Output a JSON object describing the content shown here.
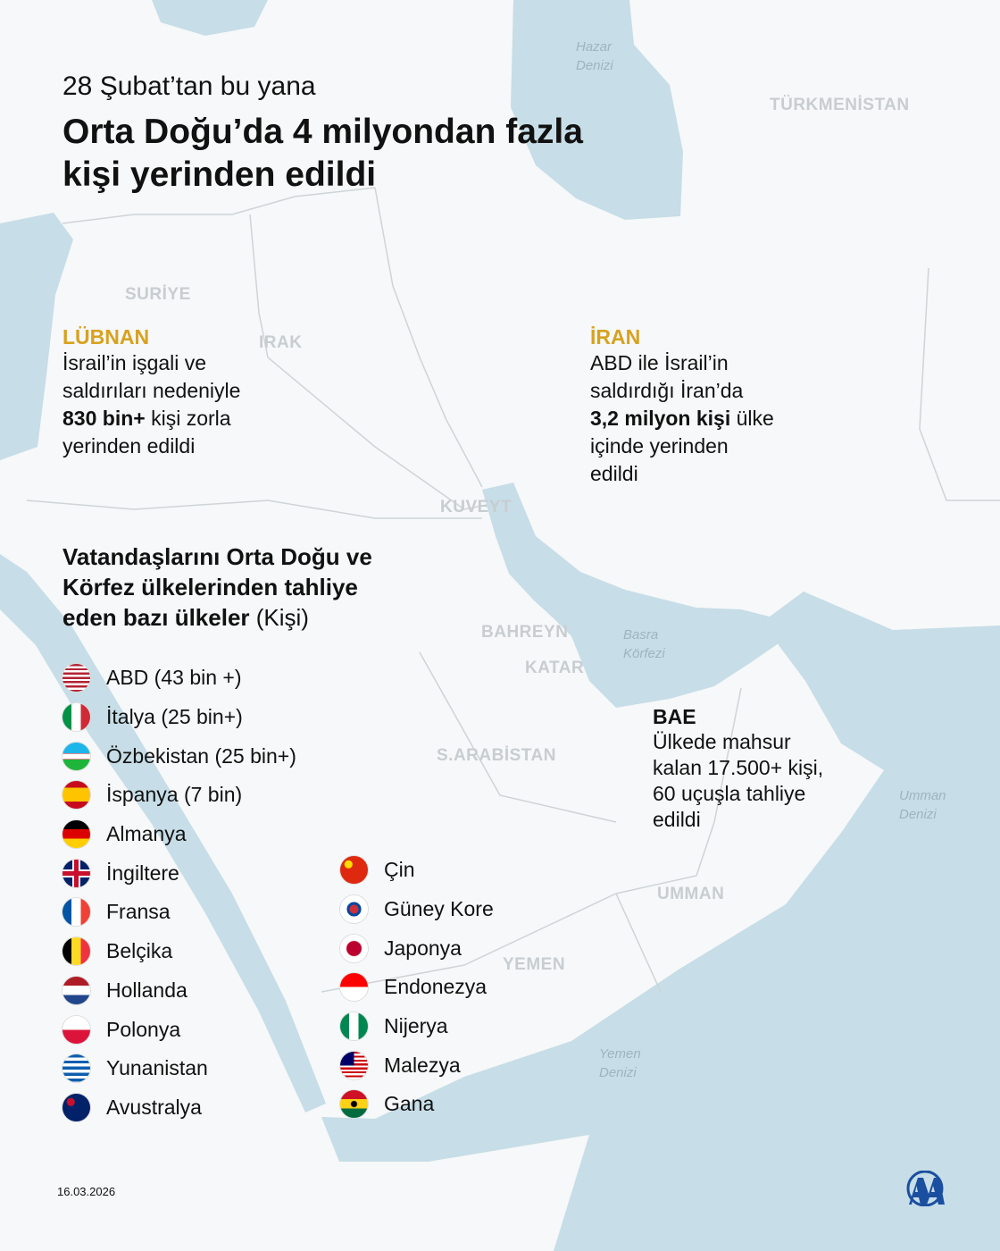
{
  "header": {
    "subtitle": "28 Şubat’tan bu yana",
    "title_line1": "Orta Doğu’da 4 milyondan fazla",
    "title_line2": "kişi yerinden edildi"
  },
  "map": {
    "colors": {
      "sea": "#c7dde7",
      "land": "#f6f8f9",
      "border": "#cfd4d7",
      "accent": "#d7a21f"
    },
    "countries": [
      "SURİYE",
      "IRAK",
      "KUVEYT",
      "BAHREYN",
      "KATAR",
      "S.ARABİSTAN",
      "UMMAN",
      "YEMEN",
      "TÜRKMENİSTAN"
    ],
    "seas": [
      [
        "Hazar",
        "Denizi"
      ],
      [
        "Basra",
        "Körfezi"
      ],
      [
        "Umman",
        "Denizi"
      ],
      [
        "Yemen",
        "Denizi"
      ]
    ]
  },
  "callouts": {
    "lubnan": {
      "heading": "LÜBNAN",
      "line1": "İsrail’in işgali ve",
      "line2": "saldırıları nedeniyle",
      "bold": "830 bin+",
      "line3_rest": " kişi zorla",
      "line4": "yerinden edildi"
    },
    "iran": {
      "heading": "İRAN",
      "line1": "ABD ile İsrail’in",
      "line2": "saldırdığı İran’da",
      "bold": "3,2 milyon kişi",
      "line3_rest": " ülke",
      "line4": "içinde yerinden",
      "line5": "edildi"
    },
    "bae": {
      "heading": "BAE",
      "line1": "Ülkede mahsur",
      "line2": "kalan 17.500+ kişi,",
      "line3": "60 uçuşla tahliye",
      "line4": "edildi"
    }
  },
  "evacuation": {
    "title_line1": "Vatandaşlarını Orta Doğu ve",
    "title_line2": "Körfez ülkelerinden tahliye",
    "title_line3": "eden bazı ülkeler",
    "unit": " (Kişi)",
    "left": [
      {
        "label": "ABD (43 bin +)",
        "flag": "usa"
      },
      {
        "label": "İtalya (25 bin+)",
        "flag": "italy"
      },
      {
        "label": "Özbekistan (25 bin+)",
        "flag": "uzbekistan"
      },
      {
        "label": "İspanya (7 bin)",
        "flag": "spain"
      },
      {
        "label": "Almanya",
        "flag": "germany"
      },
      {
        "label": "İngiltere",
        "flag": "uk"
      },
      {
        "label": "Fransa",
        "flag": "france"
      },
      {
        "label": "Belçika",
        "flag": "belgium"
      },
      {
        "label": "Hollanda",
        "flag": "netherlands"
      },
      {
        "label": "Polonya",
        "flag": "poland"
      },
      {
        "label": "Yunanistan",
        "flag": "greece"
      },
      {
        "label": "Avustralya",
        "flag": "australia"
      }
    ],
    "right": [
      {
        "label": "Çin",
        "flag": "china"
      },
      {
        "label": "Güney Kore",
        "flag": "south-korea"
      },
      {
        "label": "Japonya",
        "flag": "japan"
      },
      {
        "label": "Endonezya",
        "flag": "indonesia"
      },
      {
        "label": "Nijerya",
        "flag": "nigeria"
      },
      {
        "label": "Malezya",
        "flag": "malaysia"
      },
      {
        "label": "Gana",
        "flag": "ghana"
      }
    ]
  },
  "footer": {
    "date": "16.03.2026",
    "logo": "AA",
    "logo_color": "#1a4fa0"
  }
}
